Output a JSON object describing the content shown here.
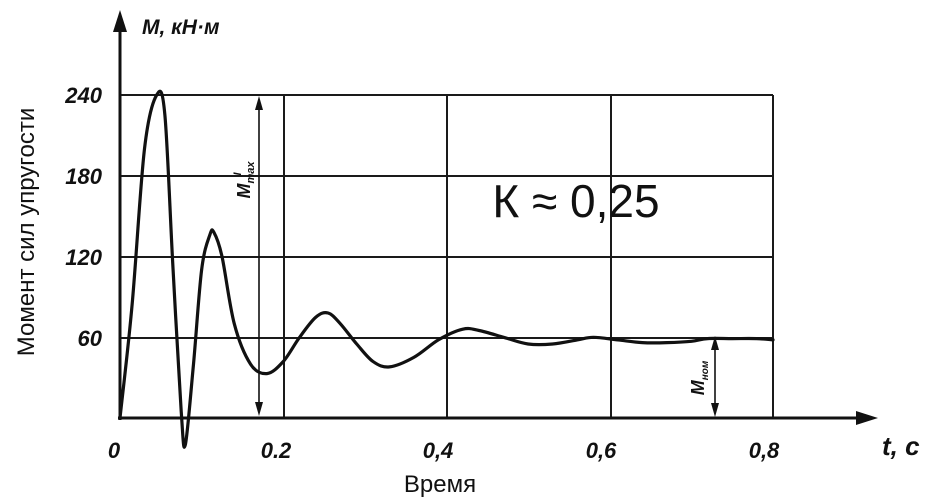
{
  "chart_data": {
    "type": "line",
    "y_unit_label": "М, кН·м",
    "x_unit_label": "t, с",
    "ylabel": "Момент сил упругости",
    "xlabel": "Время",
    "annotation": "К ≈ 0,25",
    "mmax_label": "M",
    "mmax_superscript": "I",
    "mmax_subscript": "max",
    "mnom_label": "M",
    "mnom_subscript": "ном",
    "x_ticks": [
      "0",
      "0.2",
      "0,4",
      "0,6",
      "0,8"
    ],
    "y_ticks": [
      "60",
      "120",
      "180",
      "240"
    ],
    "xlim": [
      0,
      0.8
    ],
    "ylim": [
      0,
      240
    ],
    "grid": true,
    "series": [
      {
        "x": [
          0,
          0.015,
          0.03,
          0.045,
          0.055,
          0.065,
          0.075,
          0.08,
          0.09,
          0.1,
          0.11,
          0.115,
          0.125,
          0.14,
          0.16,
          0.18,
          0.2,
          0.22,
          0.24,
          0.255,
          0.27,
          0.29,
          0.31,
          0.33,
          0.36,
          0.39,
          0.42,
          0.44,
          0.47,
          0.5,
          0.53,
          0.56,
          0.58,
          0.61,
          0.64,
          0.67,
          0.7,
          0.72,
          0.75,
          0.78,
          0.8
        ],
        "y": [
          0,
          85,
          200,
          240,
          225,
          110,
          5,
          -20,
          40,
          110,
          136,
          138,
          120,
          70,
          40,
          33,
          42,
          60,
          75,
          78,
          70,
          55,
          42,
          38,
          45,
          58,
          66,
          65,
          60,
          55,
          55,
          58,
          60,
          58,
          56,
          56,
          57,
          59,
          59,
          59,
          58
        ]
      }
    ]
  }
}
